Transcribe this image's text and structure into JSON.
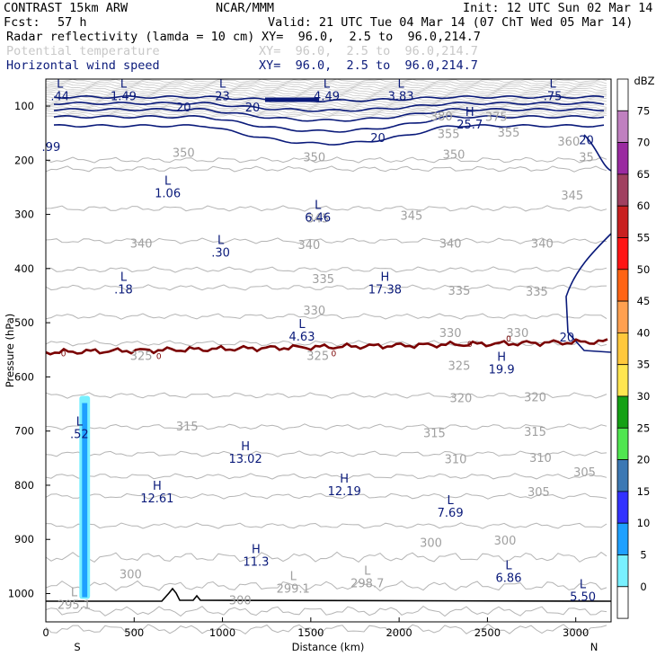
{
  "header": {
    "model": "CONTRAST 15km ARW",
    "org": "NCAR/MMM",
    "init": "Init: 12 UTC Sun 02 Mar 14",
    "fcst_label": "Fcst:",
    "fcst_value": "57 h",
    "valid": "Valid: 21 UTC Tue 04 Mar 14 (07 ChT Wed 05 Mar 14)",
    "fields": [
      {
        "name": "Radar reflectivity (lamda = 10 cm)",
        "xy": "XY=  96.0,  2.5 to  96.0,214.7",
        "color": "#000000"
      },
      {
        "name": "Potential temperature",
        "xy": "XY=  96.0,  2.5 to  96.0,214.7",
        "color": "#c8c8c8"
      },
      {
        "name": "Horizontal wind speed",
        "xy": "XY=  96.0,  2.5 to  96.0,214.7",
        "color": "#0a1a7a"
      }
    ]
  },
  "chart_data": {
    "type": "cross-section",
    "xlabel": "Distance (km)",
    "ylabel": "Pressure (hPa)",
    "xlim": [
      0,
      3200
    ],
    "ylim": [
      1055,
      60
    ],
    "x_ticks": [
      0,
      500,
      1000,
      1500,
      2000,
      2500,
      3000
    ],
    "y_ticks": [
      100,
      200,
      300,
      400,
      500,
      600,
      700,
      800,
      900,
      1000
    ],
    "x_end_labels": {
      "left": "S",
      "right": "N"
    },
    "colorbar": {
      "unit": "dBZ",
      "levels": [
        {
          "value": "",
          "color": "#ffffff"
        },
        {
          "value": "75",
          "color": "#c080c0"
        },
        {
          "value": "70",
          "color": "#9a2aa0"
        },
        {
          "value": "65",
          "color": "#a04060"
        },
        {
          "value": "60",
          "color": "#c82020"
        },
        {
          "value": "55",
          "color": "#ff1414"
        },
        {
          "value": "50",
          "color": "#ff6414"
        },
        {
          "value": "45",
          "color": "#ffa050"
        },
        {
          "value": "40",
          "color": "#ffc83c"
        },
        {
          "value": "35",
          "color": "#ffe650"
        },
        {
          "value": "30",
          "color": "#14a014"
        },
        {
          "value": "25",
          "color": "#50e650"
        },
        {
          "value": "20",
          "color": "#3c78b4"
        },
        {
          "value": "15",
          "color": "#3232ff"
        },
        {
          "value": "10",
          "color": "#1ea0ff"
        },
        {
          "value": "5",
          "color": "#78f0ff"
        },
        {
          "value": "0",
          "color": "#ffffff"
        }
      ]
    },
    "theta_contour_labels": [
      {
        "x": 2240,
        "p": 120,
        "text": "380"
      },
      {
        "x": 2550,
        "p": 121,
        "text": "375"
      },
      {
        "x": 2960,
        "p": 166,
        "text": "360"
      },
      {
        "x": 2280,
        "p": 152,
        "text": "355"
      },
      {
        "x": 2620,
        "p": 150,
        "text": "355"
      },
      {
        "x": 3060,
        "p": 195,
        "text": "35"
      },
      {
        "x": 780,
        "p": 187,
        "text": "350"
      },
      {
        "x": 1520,
        "p": 195,
        "text": "350"
      },
      {
        "x": 2310,
        "p": 190,
        "text": "350"
      },
      {
        "x": 2980,
        "p": 266,
        "text": "345"
      },
      {
        "x": 1540,
        "p": 308,
        "text": "345"
      },
      {
        "x": 2070,
        "p": 303,
        "text": "345"
      },
      {
        "x": 540,
        "p": 355,
        "text": "340"
      },
      {
        "x": 1490,
        "p": 357,
        "text": "340"
      },
      {
        "x": 2290,
        "p": 355,
        "text": "340"
      },
      {
        "x": 2810,
        "p": 355,
        "text": "340"
      },
      {
        "x": 1570,
        "p": 420,
        "text": "335"
      },
      {
        "x": 2340,
        "p": 442,
        "text": "335"
      },
      {
        "x": 2780,
        "p": 443,
        "text": "335"
      },
      {
        "x": 1520,
        "p": 478,
        "text": "330"
      },
      {
        "x": 2290,
        "p": 520,
        "text": "330"
      },
      {
        "x": 2670,
        "p": 520,
        "text": "330"
      },
      {
        "x": 540,
        "p": 562,
        "text": "325"
      },
      {
        "x": 1540,
        "p": 562,
        "text": "325"
      },
      {
        "x": 2340,
        "p": 580,
        "text": "325"
      },
      {
        "x": 2350,
        "p": 640,
        "text": "320"
      },
      {
        "x": 2770,
        "p": 638,
        "text": "320"
      },
      {
        "x": 800,
        "p": 692,
        "text": "315"
      },
      {
        "x": 2200,
        "p": 705,
        "text": "315"
      },
      {
        "x": 2770,
        "p": 702,
        "text": "315"
      },
      {
        "x": 2320,
        "p": 753,
        "text": "310"
      },
      {
        "x": 2800,
        "p": 750,
        "text": "310"
      },
      {
        "x": 3050,
        "p": 777,
        "text": "305"
      },
      {
        "x": 2790,
        "p": 813,
        "text": "305"
      },
      {
        "x": 2180,
        "p": 907,
        "text": "300"
      },
      {
        "x": 2600,
        "p": 903,
        "text": "300"
      },
      {
        "x": 480,
        "p": 965,
        "text": "300"
      },
      {
        "x": 1100,
        "p": 1013,
        "text": "300"
      }
    ],
    "wind_contour_labels": [
      {
        "x": 780,
        "p": 103,
        "text": "20"
      },
      {
        "x": 1170,
        "p": 103,
        "text": "20"
      },
      {
        "x": 1880,
        "p": 160,
        "text": "20"
      },
      {
        "x": 3060,
        "p": 164,
        "text": "20"
      },
      {
        "x": 2950,
        "p": 528,
        "text": "20"
      }
    ],
    "zero_contour_labels": [
      {
        "x": 100,
        "p": 557,
        "text": "0"
      },
      {
        "x": 640,
        "p": 562,
        "text": "0"
      },
      {
        "x": 1630,
        "p": 557,
        "text": "0"
      },
      {
        "x": 2400,
        "p": 540,
        "text": "0"
      },
      {
        "x": 2620,
        "p": 530,
        "text": "0"
      }
    ],
    "navy_extrema": [
      {
        "x": 80,
        "p": 66,
        "type": "L",
        "value": ".44"
      },
      {
        "x": 440,
        "p": 66,
        "type": "L",
        "value": "1.49"
      },
      {
        "x": 1000,
        "p": 66,
        "type": "L",
        "value": "23"
      },
      {
        "x": 1590,
        "p": 66,
        "type": "L",
        "value": "4.49"
      },
      {
        "x": 2010,
        "p": 66,
        "type": "L",
        "value": "3.83"
      },
      {
        "x": 2870,
        "p": 66,
        "type": "L",
        "value": ".75"
      },
      {
        "x": 2400,
        "p": 118,
        "type": "H",
        "value": "25.7"
      },
      {
        "x": 30,
        "p": 160,
        "type": "",
        "value": ".99"
      },
      {
        "x": 690,
        "p": 245,
        "type": "L",
        "value": "1.06"
      },
      {
        "x": 1540,
        "p": 290,
        "type": "L",
        "value": "6.46"
      },
      {
        "x": 990,
        "p": 355,
        "type": "L",
        "value": ".30"
      },
      {
        "x": 440,
        "p": 423,
        "type": "L",
        "value": ".18"
      },
      {
        "x": 1920,
        "p": 423,
        "type": "H",
        "value": "17.38"
      },
      {
        "x": 1450,
        "p": 510,
        "type": "L",
        "value": "4.63"
      },
      {
        "x": 2580,
        "p": 570,
        "type": "H",
        "value": "19.9"
      },
      {
        "x": 190,
        "p": 690,
        "type": "L",
        "value": ".52"
      },
      {
        "x": 1130,
        "p": 735,
        "type": "H",
        "value": "13.02"
      },
      {
        "x": 630,
        "p": 808,
        "type": "H",
        "value": "12.61"
      },
      {
        "x": 1690,
        "p": 795,
        "type": "H",
        "value": "12.19"
      },
      {
        "x": 2290,
        "p": 835,
        "type": "L",
        "value": "7.69"
      },
      {
        "x": 1190,
        "p": 925,
        "type": "H",
        "value": "11.3"
      },
      {
        "x": 2620,
        "p": 955,
        "type": "L",
        "value": "6.86"
      },
      {
        "x": 3040,
        "p": 990,
        "type": "L",
        "value": "5.50"
      }
    ],
    "gray_extrema": [
      {
        "x": 1400,
        "p": 975,
        "type": "L",
        "value": "299.1"
      },
      {
        "x": 1820,
        "p": 965,
        "type": "L",
        "value": "298.7"
      },
      {
        "x": 160,
        "p": 1005,
        "type": "L",
        "value": "295.1"
      }
    ],
    "reflectivity_column": {
      "x_start": 200,
      "x_end": 240,
      "p_top": 635,
      "p_bottom": 1010,
      "dbz_max": "10"
    }
  }
}
